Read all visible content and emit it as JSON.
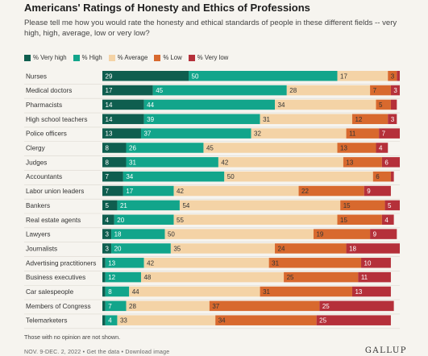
{
  "chart_data": {
    "type": "bar",
    "stacked": true,
    "orientation": "horizontal",
    "title": "Americans' Ratings of Honesty and Ethics of Professions",
    "subtitle": "Please tell me how you would rate the honesty and ethical standards of people in these different fields -- very high, high, average, low or very low?",
    "categories": [
      "Nurses",
      "Medical doctors",
      "Pharmacists",
      "High school teachers",
      "Police officers",
      "Clergy",
      "Judges",
      "Accountants",
      "Labor union leaders",
      "Bankers",
      "Real estate agents",
      "Lawyers",
      "Journalists",
      "Advertising practitioners",
      "Business executives",
      "Car salespeople",
      "Members of Congress",
      "Telemarketers"
    ],
    "series": [
      {
        "name": "% Very high",
        "color": "#0f5e4f",
        "label_color": "#ffffff",
        "values": [
          29,
          17,
          14,
          14,
          13,
          8,
          8,
          7,
          7,
          5,
          4,
          3,
          3,
          1,
          1,
          1,
          1,
          1
        ]
      },
      {
        "name": "% High",
        "color": "#12a58b",
        "label_color": "#ffffff",
        "values": [
          50,
          45,
          44,
          39,
          37,
          26,
          31,
          34,
          17,
          21,
          20,
          18,
          20,
          13,
          12,
          8,
          7,
          4
        ]
      },
      {
        "name": "% Average",
        "color": "#f4d3a6",
        "label_color": "#333333",
        "values": [
          17,
          28,
          34,
          31,
          32,
          45,
          42,
          50,
          42,
          54,
          55,
          50,
          35,
          42,
          48,
          44,
          28,
          33
        ]
      },
      {
        "name": "% Low",
        "color": "#d8692e",
        "label_color": "#333333",
        "values": [
          3,
          7,
          5,
          12,
          11,
          13,
          13,
          6,
          22,
          15,
          15,
          19,
          24,
          31,
          25,
          31,
          37,
          34
        ]
      },
      {
        "name": "% Very low",
        "color": "#b5303a",
        "label_color": "#ffffff",
        "values": [
          1,
          3,
          2,
          3,
          7,
          4,
          6,
          1,
          9,
          5,
          4,
          9,
          18,
          10,
          11,
          13,
          25,
          25
        ]
      }
    ],
    "label_visibility": [
      [
        true,
        true,
        true,
        true,
        false
      ],
      [
        true,
        true,
        true,
        true,
        true
      ],
      [
        true,
        true,
        true,
        true,
        false
      ],
      [
        true,
        true,
        true,
        true,
        true
      ],
      [
        true,
        true,
        true,
        true,
        true
      ],
      [
        true,
        true,
        true,
        true,
        true
      ],
      [
        true,
        true,
        true,
        true,
        true
      ],
      [
        true,
        true,
        true,
        true,
        false
      ],
      [
        true,
        true,
        true,
        true,
        true
      ],
      [
        true,
        true,
        true,
        true,
        true
      ],
      [
        true,
        true,
        true,
        true,
        true
      ],
      [
        true,
        true,
        true,
        true,
        true
      ],
      [
        true,
        true,
        true,
        true,
        true
      ],
      [
        false,
        true,
        true,
        true,
        true
      ],
      [
        false,
        true,
        true,
        true,
        true
      ],
      [
        false,
        true,
        true,
        true,
        true
      ],
      [
        false,
        true,
        true,
        true,
        true
      ],
      [
        false,
        true,
        true,
        true,
        true
      ]
    ],
    "xlim": [
      0,
      100
    ],
    "legend_position": "top-left",
    "grid": false
  },
  "note": "Those with no opinion are not shown.",
  "footer": {
    "date": "NOV. 9-DEC. 2, 2022",
    "separator": "•",
    "link1": "Get the data",
    "link2": "Download image",
    "brand": "GALLUP"
  }
}
